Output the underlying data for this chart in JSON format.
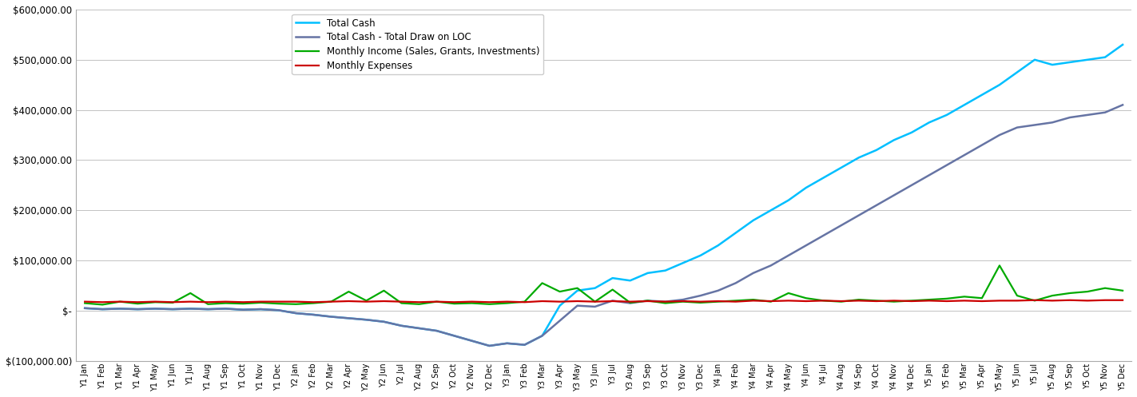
{
  "labels": [
    "Y1 Jan",
    "Y1 Feb",
    "Y1 Mar",
    "Y1 Apr",
    "Y1 May",
    "Y1 Jun",
    "Y1 Jul",
    "Y1 Aug",
    "Y1 Sep",
    "Y1 Oct",
    "Y1 Nov",
    "Y1 Dec",
    "Y2 Jan",
    "Y2 Feb",
    "Y2 Mar",
    "Y2 Apr",
    "Y2 May",
    "Y2 Jun",
    "Y2 Jul",
    "Y2 Aug",
    "Y2 Sep",
    "Y2 Oct",
    "Y2 Nov",
    "Y2 Dec",
    "Y3 Jan",
    "Y3 Feb",
    "Y3 Mar",
    "Y3 Apr",
    "Y3 May",
    "Y3 Jun",
    "Y3 Jul",
    "Y3 Aug",
    "Y3 Sep",
    "Y3 Oct",
    "Y3 Nov",
    "Y3 Dec",
    "Y4 Jan",
    "Y4 Feb",
    "Y4 Mar",
    "Y4 Apr",
    "Y4 May",
    "Y4 Jun",
    "Y4 Jul",
    "Y4 Aug",
    "Y4 Sep",
    "Y4 Oct",
    "Y4 Nov",
    "Y4 Dec",
    "Y5 Jan",
    "Y5 Feb",
    "Y5 Mar",
    "Y5 Apr",
    "Y5 May",
    "Y5 Jun",
    "Y5 Jul",
    "Y5 Aug",
    "Y5 Sep",
    "Y5 Oct",
    "Y5 Nov",
    "Y5 Dec"
  ],
  "monthly_income": [
    15000,
    12000,
    18000,
    14000,
    17000,
    16000,
    35000,
    13000,
    15000,
    14000,
    16000,
    14000,
    13000,
    15000,
    18000,
    38000,
    20000,
    40000,
    15000,
    13000,
    18000,
    14000,
    15000,
    13000,
    15000,
    18000,
    55000,
    38000,
    45000,
    18000,
    42000,
    16000,
    20000,
    15000,
    18000,
    16000,
    18000,
    20000,
    22000,
    18000,
    35000,
    25000,
    20000,
    18000,
    22000,
    20000,
    18000,
    20000,
    22000,
    24000,
    28000,
    25000,
    90000,
    30000,
    20000,
    30000,
    35000,
    38000,
    45000,
    40000
  ],
  "monthly_expenses": [
    18000,
    17000,
    18000,
    17000,
    18000,
    17000,
    18000,
    17000,
    18000,
    17000,
    18000,
    18000,
    18000,
    17000,
    18000,
    19000,
    18000,
    19000,
    18000,
    17000,
    18000,
    17000,
    18000,
    17000,
    18000,
    17000,
    19000,
    18000,
    19000,
    18000,
    19000,
    18000,
    19000,
    18000,
    19000,
    18000,
    19000,
    18000,
    20000,
    19000,
    20000,
    19000,
    20000,
    19000,
    20000,
    19000,
    20000,
    19000,
    20000,
    19000,
    20000,
    19000,
    20000,
    20000,
    21000,
    20000,
    21000,
    20000,
    21000,
    21000
  ],
  "total_cash_minus_loc": [
    5000,
    3000,
    4000,
    3000,
    4000,
    3000,
    4000,
    3000,
    4000,
    2000,
    3000,
    1000,
    -5000,
    -8000,
    -12000,
    -15000,
    -18000,
    -22000,
    -30000,
    -35000,
    -40000,
    -50000,
    -60000,
    -70000,
    -65000,
    -68000,
    -50000,
    -20000,
    10000,
    8000,
    20000,
    15000,
    20000,
    18000,
    22000,
    30000,
    40000,
    55000,
    75000,
    90000,
    110000,
    130000,
    150000,
    170000,
    190000,
    210000,
    230000,
    250000,
    270000,
    290000,
    310000,
    330000,
    350000,
    365000,
    370000,
    375000,
    385000,
    390000,
    395000,
    410000
  ],
  "total_cash": [
    5000,
    3000,
    4000,
    3000,
    4000,
    3000,
    4000,
    3000,
    4000,
    2000,
    3000,
    1000,
    -5000,
    -8000,
    -12000,
    -15000,
    -18000,
    -22000,
    -30000,
    -35000,
    -40000,
    -50000,
    -60000,
    -70000,
    -65000,
    -68000,
    -50000,
    10000,
    40000,
    45000,
    65000,
    60000,
    75000,
    80000,
    95000,
    110000,
    130000,
    155000,
    180000,
    200000,
    220000,
    245000,
    265000,
    285000,
    305000,
    320000,
    340000,
    355000,
    375000,
    390000,
    410000,
    430000,
    450000,
    475000,
    500000,
    490000,
    495000,
    500000,
    505000,
    530000
  ],
  "income_color": "#00aa00",
  "expense_color": "#cc0000",
  "total_cash_loc_color": "#6674a4",
  "total_cash_color": "#00bfff",
  "legend_labels": [
    "Monthly Income (Sales, Grants, Investments)",
    "Monthly Expenses",
    "Total Cash - Total Draw on LOC",
    "Total Cash"
  ],
  "ylim_min": -100000,
  "ylim_max": 600000,
  "yticks": [
    -100000,
    0,
    100000,
    200000,
    300000,
    400000,
    500000,
    600000
  ],
  "background_color": "#ffffff",
  "grid_color": "#aaaaaa"
}
